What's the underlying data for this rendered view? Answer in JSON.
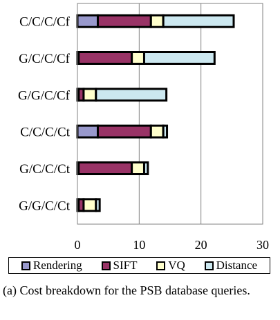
{
  "chart_data": {
    "type": "bar",
    "orientation": "horizontal",
    "stacked": true,
    "categories": [
      "C/C/C/Cf",
      "G/C/C/Cf",
      "G/G/C/Cf",
      "C/C/C/Ct",
      "G/C/C/Ct",
      "G/G/C/Ct"
    ],
    "series": [
      {
        "name": "Rendering",
        "color": "#9999cc",
        "values": [
          3.3,
          0.2,
          0.2,
          3.3,
          0.2,
          0.2
        ]
      },
      {
        "name": "SIFT",
        "color": "#993366",
        "values": [
          8.6,
          8.6,
          0.8,
          8.6,
          8.6,
          0.8
        ]
      },
      {
        "name": "VQ",
        "color": "#ffffcc",
        "values": [
          2.0,
          2.0,
          2.0,
          2.0,
          2.0,
          2.0
        ]
      },
      {
        "name": "Distance",
        "color": "#cce8f0",
        "values": [
          11.4,
          11.4,
          11.4,
          0.6,
          0.6,
          0.6
        ]
      }
    ],
    "xlim": [
      0,
      30
    ],
    "xticks": [
      "0",
      "10",
      "20",
      "30"
    ],
    "grid": "vertical",
    "legend": "bottom"
  },
  "caption": "(a) Cost breakdown for the PSB database queries."
}
